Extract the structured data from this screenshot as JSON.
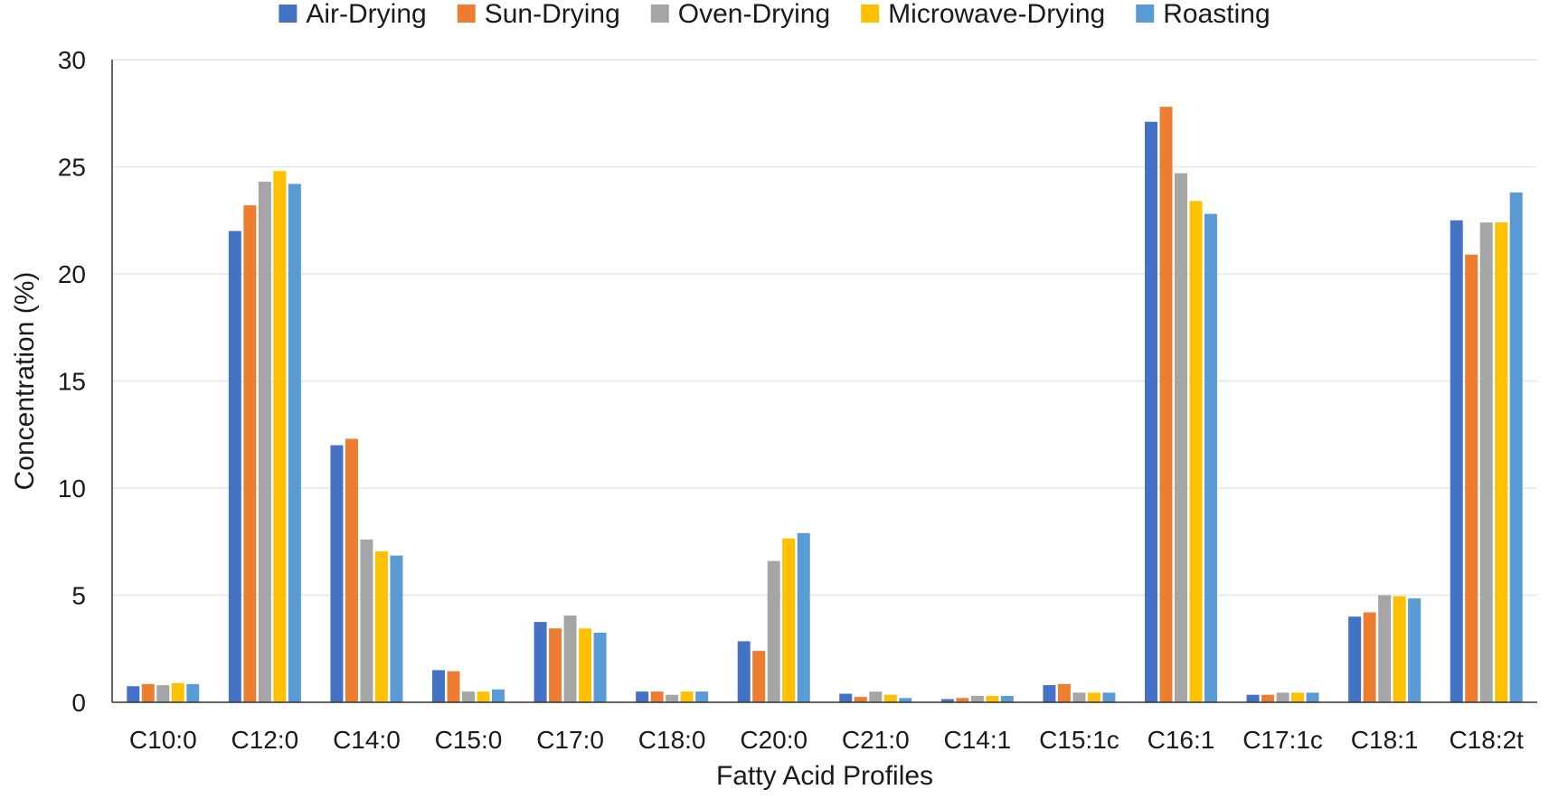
{
  "chart_data": {
    "type": "bar",
    "xlabel": "Fatty Acid Profiles",
    "ylabel": "Concentration (%)",
    "ylim": [
      0,
      30
    ],
    "yticks": [
      0,
      5,
      10,
      15,
      20,
      25,
      30
    ],
    "grid": true,
    "legend_position": "top",
    "categories": [
      "C10:0",
      "C12:0",
      "C14:0",
      "C15:0",
      "C17:0",
      "C18:0",
      "C20:0",
      "C21:0",
      "C14:1",
      "C15:1c",
      "C16:1",
      "C17:1c",
      "C18:1",
      "C18:2t"
    ],
    "series": [
      {
        "name": "Air-Drying",
        "color": "#4472C4",
        "values": [
          0.75,
          22.0,
          12.0,
          1.5,
          3.75,
          0.5,
          2.85,
          0.4,
          0.15,
          0.8,
          27.1,
          0.35,
          4.0,
          22.5
        ]
      },
      {
        "name": "Sun-Drying",
        "color": "#ED7D31",
        "values": [
          0.85,
          23.2,
          12.3,
          1.45,
          3.45,
          0.5,
          2.4,
          0.25,
          0.2,
          0.85,
          27.8,
          0.35,
          4.2,
          20.9
        ]
      },
      {
        "name": "Oven-Drying",
        "color": "#A5A5A5",
        "values": [
          0.8,
          24.3,
          7.6,
          0.5,
          4.05,
          0.35,
          6.6,
          0.5,
          0.3,
          0.45,
          24.7,
          0.45,
          5.0,
          22.4
        ]
      },
      {
        "name": "Microwave-Drying",
        "color": "#FFC000",
        "values": [
          0.9,
          24.8,
          7.05,
          0.5,
          3.45,
          0.5,
          7.65,
          0.35,
          0.3,
          0.45,
          23.4,
          0.45,
          4.95,
          22.4
        ]
      },
      {
        "name": "Roasting",
        "color": "#5B9BD5",
        "values": [
          0.85,
          24.2,
          6.85,
          0.6,
          3.25,
          0.5,
          7.9,
          0.2,
          0.3,
          0.45,
          22.8,
          0.45,
          4.85,
          23.8
        ]
      }
    ]
  }
}
